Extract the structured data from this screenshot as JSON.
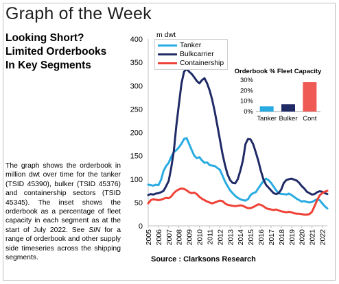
{
  "header": {
    "title": "Graph of the Week",
    "subtitle_lines": [
      "Looking Short?",
      "Limited Orderbooks",
      "In Key Segments"
    ]
  },
  "description": {
    "text_before": "The graph shows the orderbook in million dwt over time for the tanker (TSID 45390), bulker (TSID 45376) and containership sectors (TSID 45345). The inset shows the orderbook as a percentage of fleet capacity in each segment as at the start of July 2022. See ",
    "emphasis": "SIN",
    "text_after": " for a range of orderbook and other supply side timeseries across the shipping segments."
  },
  "source": "Source : Clarksons Research",
  "colors": {
    "tanker": "#29abe2",
    "bulkcarrier": "#1f2a66",
    "containership": "#ef4136",
    "inset_cont": "#f05a54"
  },
  "chart_data": [
    {
      "type": "line",
      "title": "",
      "ylabel": "m dwt",
      "xlabel": "",
      "ylim": [
        0,
        400
      ],
      "yticks": [
        "0",
        "50",
        "100",
        "150",
        "200",
        "250",
        "300",
        "350",
        "400"
      ],
      "xticks": [
        "2005",
        "2006",
        "2007",
        "2008",
        "2009",
        "2010",
        "2011",
        "2012",
        "2013",
        "2014",
        "2015",
        "2016",
        "2017",
        "2018",
        "2019",
        "2020",
        "2021",
        "2022"
      ],
      "grid": false,
      "legend_position": "top-left",
      "series": [
        {
          "name": "Tanker",
          "color": "#29abe2",
          "points": [
            [
              2005.0,
              88
            ],
            [
              2005.25,
              87
            ],
            [
              2005.5,
              86
            ],
            [
              2005.75,
              88
            ],
            [
              2006.0,
              87
            ],
            [
              2006.25,
              98
            ],
            [
              2006.5,
              118
            ],
            [
              2006.75,
              128
            ],
            [
              2007.0,
              135
            ],
            [
              2007.25,
              148
            ],
            [
              2007.5,
              158
            ],
            [
              2007.75,
              162
            ],
            [
              2008.0,
              168
            ],
            [
              2008.25,
              176
            ],
            [
              2008.5,
              186
            ],
            [
              2008.75,
              188
            ],
            [
              2009.0,
              175
            ],
            [
              2009.25,
              162
            ],
            [
              2009.5,
              150
            ],
            [
              2009.75,
              145
            ],
            [
              2010.0,
              147
            ],
            [
              2010.25,
              140
            ],
            [
              2010.5,
              135
            ],
            [
              2010.75,
              136
            ],
            [
              2011.0,
              130
            ],
            [
              2011.25,
              129
            ],
            [
              2011.5,
              128
            ],
            [
              2011.75,
              124
            ],
            [
              2012.0,
              120
            ],
            [
              2012.25,
              108
            ],
            [
              2012.5,
              95
            ],
            [
              2012.75,
              85
            ],
            [
              2013.0,
              76
            ],
            [
              2013.25,
              70
            ],
            [
              2013.5,
              64
            ],
            [
              2013.75,
              60
            ],
            [
              2014.0,
              57
            ],
            [
              2014.25,
              55
            ],
            [
              2014.5,
              54
            ],
            [
              2014.75,
              57
            ],
            [
              2015.0,
              66
            ],
            [
              2015.25,
              70
            ],
            [
              2015.5,
              72
            ],
            [
              2015.75,
              80
            ],
            [
              2016.0,
              88
            ],
            [
              2016.25,
              96
            ],
            [
              2016.5,
              101
            ],
            [
              2016.75,
              98
            ],
            [
              2017.0,
              92
            ],
            [
              2017.25,
              84
            ],
            [
              2017.5,
              76
            ],
            [
              2017.75,
              70
            ],
            [
              2018.0,
              68
            ],
            [
              2018.25,
              68
            ],
            [
              2018.5,
              67
            ],
            [
              2018.75,
              69
            ],
            [
              2019.0,
              66
            ],
            [
              2019.25,
              62
            ],
            [
              2019.5,
              58
            ],
            [
              2019.75,
              55
            ],
            [
              2020.0,
              52
            ],
            [
              2020.25,
              53
            ],
            [
              2020.5,
              51
            ],
            [
              2020.75,
              50
            ],
            [
              2021.0,
              51
            ],
            [
              2021.25,
              54
            ],
            [
              2021.5,
              57
            ],
            [
              2021.75,
              55
            ],
            [
              2022.0,
              48
            ],
            [
              2022.25,
              42
            ],
            [
              2022.5,
              37
            ]
          ]
        },
        {
          "name": "Bulkcarrier",
          "color": "#1f2a66",
          "points": [
            [
              2005.0,
              66
            ],
            [
              2005.25,
              68
            ],
            [
              2005.5,
              67
            ],
            [
              2005.75,
              69
            ],
            [
              2006.0,
              70
            ],
            [
              2006.25,
              72
            ],
            [
              2006.5,
              75
            ],
            [
              2006.75,
              85
            ],
            [
              2007.0,
              96
            ],
            [
              2007.25,
              125
            ],
            [
              2007.5,
              160
            ],
            [
              2007.75,
              215
            ],
            [
              2008.0,
              260
            ],
            [
              2008.25,
              305
            ],
            [
              2008.5,
              330
            ],
            [
              2008.75,
              336
            ],
            [
              2009.0,
              330
            ],
            [
              2009.25,
              325
            ],
            [
              2009.5,
              318
            ],
            [
              2009.75,
              310
            ],
            [
              2010.0,
              305
            ],
            [
              2010.25,
              312
            ],
            [
              2010.5,
              316
            ],
            [
              2010.75,
              305
            ],
            [
              2011.0,
              290
            ],
            [
              2011.25,
              270
            ],
            [
              2011.5,
              245
            ],
            [
              2011.75,
              215
            ],
            [
              2012.0,
              185
            ],
            [
              2012.25,
              155
            ],
            [
              2012.5,
              130
            ],
            [
              2012.75,
              110
            ],
            [
              2013.0,
              98
            ],
            [
              2013.25,
              92
            ],
            [
              2013.5,
              91
            ],
            [
              2013.75,
              100
            ],
            [
              2014.0,
              118
            ],
            [
              2014.25,
              140
            ],
            [
              2014.5,
              175
            ],
            [
              2014.75,
              186
            ],
            [
              2015.0,
              185
            ],
            [
              2015.25,
              175
            ],
            [
              2015.5,
              158
            ],
            [
              2015.75,
              140
            ],
            [
              2016.0,
              118
            ],
            [
              2016.25,
              100
            ],
            [
              2016.5,
              88
            ],
            [
              2016.75,
              82
            ],
            [
              2017.0,
              76
            ],
            [
              2017.25,
              70
            ],
            [
              2017.5,
              68
            ],
            [
              2017.75,
              70
            ],
            [
              2018.0,
              78
            ],
            [
              2018.25,
              92
            ],
            [
              2018.5,
              98
            ],
            [
              2018.75,
              100
            ],
            [
              2019.0,
              101
            ],
            [
              2019.25,
              99
            ],
            [
              2019.5,
              97
            ],
            [
              2019.75,
              92
            ],
            [
              2020.0,
              85
            ],
            [
              2020.25,
              80
            ],
            [
              2020.5,
              73
            ],
            [
              2020.75,
              70
            ],
            [
              2021.0,
              67
            ],
            [
              2021.25,
              68
            ],
            [
              2021.5,
              72
            ],
            [
              2021.75,
              74
            ],
            [
              2022.0,
              73
            ],
            [
              2022.25,
              70
            ],
            [
              2022.5,
              68
            ]
          ]
        },
        {
          "name": "Containership",
          "color": "#ef4136",
          "points": [
            [
              2005.0,
              48
            ],
            [
              2005.25,
              55
            ],
            [
              2005.5,
              57
            ],
            [
              2005.75,
              56
            ],
            [
              2006.0,
              55
            ],
            [
              2006.25,
              56
            ],
            [
              2006.5,
              58
            ],
            [
              2006.75,
              60
            ],
            [
              2007.0,
              59
            ],
            [
              2007.25,
              63
            ],
            [
              2007.5,
              70
            ],
            [
              2007.75,
              75
            ],
            [
              2008.0,
              78
            ],
            [
              2008.25,
              80
            ],
            [
              2008.5,
              79
            ],
            [
              2008.75,
              76
            ],
            [
              2009.0,
              72
            ],
            [
              2009.25,
              70
            ],
            [
              2009.5,
              71
            ],
            [
              2009.75,
              68
            ],
            [
              2010.0,
              62
            ],
            [
              2010.25,
              58
            ],
            [
              2010.5,
              55
            ],
            [
              2010.75,
              52
            ],
            [
              2011.0,
              50
            ],
            [
              2011.25,
              48
            ],
            [
              2011.5,
              50
            ],
            [
              2011.75,
              52
            ],
            [
              2012.0,
              54
            ],
            [
              2012.25,
              53
            ],
            [
              2012.5,
              48
            ],
            [
              2012.75,
              45
            ],
            [
              2013.0,
              44
            ],
            [
              2013.25,
              43
            ],
            [
              2013.5,
              42
            ],
            [
              2013.75,
              43
            ],
            [
              2014.0,
              44
            ],
            [
              2014.25,
              43
            ],
            [
              2014.5,
              40
            ],
            [
              2014.75,
              38
            ],
            [
              2015.0,
              38
            ],
            [
              2015.25,
              40
            ],
            [
              2015.5,
              43
            ],
            [
              2015.75,
              46
            ],
            [
              2016.0,
              45
            ],
            [
              2016.25,
              42
            ],
            [
              2016.5,
              38
            ],
            [
              2016.75,
              36
            ],
            [
              2017.0,
              35
            ],
            [
              2017.25,
              34
            ],
            [
              2017.5,
              35
            ],
            [
              2017.75,
              33
            ],
            [
              2018.0,
              31
            ],
            [
              2018.25,
              30
            ],
            [
              2018.5,
              29
            ],
            [
              2018.75,
              30
            ],
            [
              2019.0,
              29
            ],
            [
              2019.25,
              27
            ],
            [
              2019.5,
              26
            ],
            [
              2019.75,
              26
            ],
            [
              2020.0,
              25
            ],
            [
              2020.25,
              24
            ],
            [
              2020.5,
              24
            ],
            [
              2020.75,
              25
            ],
            [
              2021.0,
              30
            ],
            [
              2021.25,
              42
            ],
            [
              2021.5,
              55
            ],
            [
              2021.75,
              65
            ],
            [
              2022.0,
              70
            ],
            [
              2022.25,
              73
            ],
            [
              2022.5,
              75
            ]
          ]
        }
      ]
    },
    {
      "type": "bar",
      "title": "Orderbook % Fleet Capacity",
      "categories": [
        "Tanker",
        "Bulker",
        "Cont"
      ],
      "values": [
        5,
        7,
        28
      ],
      "ylim": [
        0,
        30
      ],
      "yticks": [
        "0%",
        "10%",
        "20%",
        "30%"
      ],
      "grid": false,
      "bar_colors": [
        "#29abe2",
        "#1f2a66",
        "#f05a54"
      ]
    }
  ]
}
